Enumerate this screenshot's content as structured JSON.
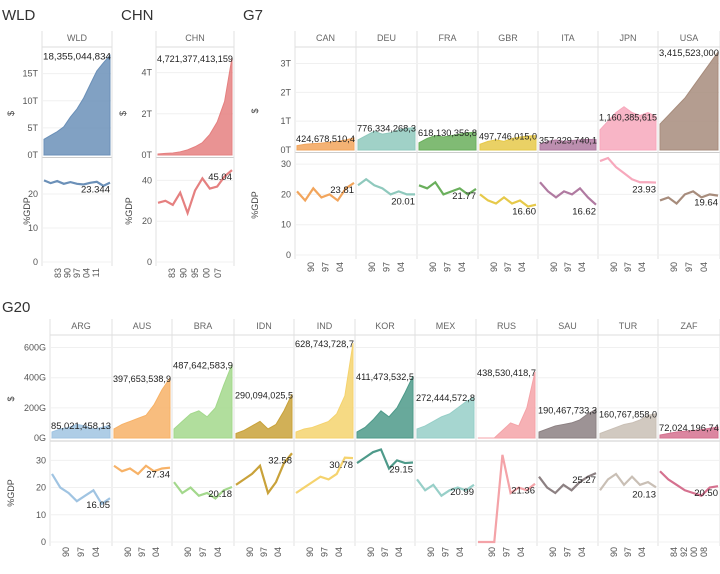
{
  "chart_data": [
    {
      "type": "area",
      "group": "WLD",
      "unit_label": "$",
      "share_label": "%GDP",
      "y_ticks_gdp": [
        "0T",
        "5T",
        "10T",
        "15T"
      ],
      "y_ticks_share": [
        "0",
        "10",
        "20"
      ],
      "series": [
        {
          "name": "WLD",
          "color": "#6b90b8",
          "gdp_label": "18,355,044,834",
          "share_label": "23.344",
          "years": [
            1983,
            1990,
            1997,
            2004,
            2011
          ],
          "year_ticks": [
            "83",
            "90",
            "97",
            "04",
            "11"
          ],
          "gdp": [
            2.9,
            3.6,
            4.3,
            5.2,
            7.0,
            8.5,
            10.5,
            13.0,
            15.5,
            17.0,
            18.36
          ],
          "share": [
            24.0,
            23.2,
            23.8,
            23.0,
            23.5,
            23.0,
            22.8,
            23.3,
            23.6,
            22.4,
            23.34
          ]
        }
      ]
    },
    {
      "type": "area",
      "group": "CHN",
      "unit_label": "$",
      "share_label": "%GDP",
      "y_ticks_gdp": [
        "0T",
        "2T",
        "4T"
      ],
      "y_ticks_share": [
        "0",
        "20",
        "40"
      ],
      "series": [
        {
          "name": "CHN",
          "color": "#e58080",
          "gdp_label": "4,721,377,413,159",
          "share_label": "45.04",
          "years": [
            1983,
            1990,
            1995,
            2000,
            2007
          ],
          "year_ticks": [
            "83",
            "90",
            "95",
            "00",
            "07"
          ],
          "gdp": [
            0.05,
            0.08,
            0.1,
            0.15,
            0.25,
            0.4,
            0.6,
            1.0,
            1.6,
            2.6,
            4.72
          ],
          "share": [
            29,
            30,
            28,
            34,
            24,
            35,
            41,
            36,
            37,
            42,
            45.04
          ]
        }
      ]
    },
    {
      "type": "area",
      "group": "G7",
      "unit_label": "$",
      "share_label": "%GDP",
      "y_ticks_gdp": [
        "0T",
        "1T",
        "2T",
        "3T"
      ],
      "y_ticks_share": [
        "0",
        "10",
        "20",
        "30"
      ],
      "year_ticks": [
        "90",
        "97",
        "04"
      ],
      "series": [
        {
          "name": "CAN",
          "color": "#f2a55c",
          "gdp_label": "424,678,510,4",
          "share_label": "23.81",
          "gdp": [
            0.15,
            0.2,
            0.22,
            0.24,
            0.27,
            0.3,
            0.35,
            0.42
          ],
          "share": [
            21,
            18,
            22,
            19,
            20,
            18,
            22,
            23.8
          ]
        },
        {
          "name": "DEU",
          "color": "#8fc9bd",
          "gdp_label": "776,334,268,3",
          "share_label": "20.01",
          "gdp": [
            0.35,
            0.5,
            0.65,
            0.55,
            0.6,
            0.7,
            0.75,
            0.78
          ],
          "share": [
            23,
            25,
            23,
            22,
            20,
            21,
            20,
            20.0
          ]
        },
        {
          "name": "FRA",
          "color": "#6aaf5c",
          "gdp_label": "618,130,356,8",
          "share_label": "21.77",
          "gdp": [
            0.25,
            0.4,
            0.5,
            0.45,
            0.5,
            0.55,
            0.6,
            0.62
          ],
          "share": [
            23,
            22,
            24,
            20,
            21,
            22,
            20,
            21.8
          ]
        },
        {
          "name": "GBR",
          "color": "#e6c94a",
          "gdp_label": "497,746,015,0",
          "share_label": "16.60",
          "gdp": [
            0.2,
            0.3,
            0.35,
            0.3,
            0.4,
            0.45,
            0.48,
            0.5
          ],
          "share": [
            20,
            18,
            17,
            19,
            17,
            18,
            16,
            16.6
          ]
        },
        {
          "name": "ITA",
          "color": "#b07aa1",
          "gdp_label": "357,329,740,1",
          "share_label": "16.62",
          "gdp": [
            0.2,
            0.3,
            0.35,
            0.3,
            0.33,
            0.35,
            0.37,
            0.36
          ],
          "share": [
            24,
            21,
            19,
            21,
            20,
            22,
            19,
            16.6
          ]
        },
        {
          "name": "JPN",
          "color": "#f7a8bc",
          "gdp_label": "1,160,385,615",
          "share_label": "23.93",
          "gdp": [
            0.7,
            1.0,
            1.3,
            1.5,
            1.3,
            1.2,
            1.3,
            1.16
          ],
          "share": [
            31,
            32,
            29,
            27,
            25,
            24,
            24,
            23.9
          ]
        },
        {
          "name": "USA",
          "color": "#a78c7c",
          "gdp_label": "3,415,523,000",
          "share_label": "19.64",
          "gdp": [
            0.9,
            1.2,
            1.5,
            1.8,
            2.2,
            2.6,
            3.0,
            3.42
          ],
          "share": [
            18,
            19,
            17,
            20,
            21,
            19,
            20,
            19.6
          ]
        }
      ]
    },
    {
      "type": "area",
      "group": "G20",
      "unit_label": "$",
      "share_label": "%GDP",
      "y_ticks_gdp": [
        "0G",
        "200G",
        "400G",
        "600G"
      ],
      "y_ticks_share": [
        "0",
        "10",
        "20",
        "30"
      ],
      "year_ticks": [
        "90",
        "97",
        "04"
      ],
      "year_ticks_alt": [
        "84",
        "92",
        "00",
        "08"
      ],
      "series": [
        {
          "name": "ARG",
          "color": "#a0c4e2",
          "gdp_label": "85,021,458,13",
          "share_label": "16.05",
          "gdp": [
            40,
            60,
            70,
            90,
            80,
            60,
            70,
            85
          ],
          "share": [
            25,
            20,
            18,
            15,
            17,
            19,
            14,
            16.1
          ]
        },
        {
          "name": "AUS",
          "color": "#f7b267",
          "gdp_label": "397,653,538,9",
          "share_label": "27.34",
          "gdp": [
            60,
            90,
            110,
            130,
            150,
            220,
            320,
            398
          ],
          "share": [
            28,
            26,
            27,
            25,
            28,
            26,
            27,
            27.3
          ]
        },
        {
          "name": "BRA",
          "color": "#a3d88c",
          "gdp_label": "487,642,583,9",
          "share_label": "20.18",
          "gdp": [
            60,
            110,
            160,
            180,
            140,
            200,
            350,
            488
          ],
          "share": [
            22,
            18,
            20,
            17,
            18,
            16,
            19,
            20.2
          ]
        },
        {
          "name": "IDN",
          "color": "#c9a23a",
          "gdp_label": "290,094,025,5",
          "share_label": "32.58",
          "gdp": [
            30,
            50,
            80,
            110,
            60,
            90,
            180,
            290
          ],
          "share": [
            21,
            23,
            25,
            28,
            18,
            22,
            29,
            32.6
          ]
        },
        {
          "name": "IND",
          "color": "#f5d36e",
          "gdp_label": "628,743,728,7",
          "share_label": "30.78",
          "gdp": [
            40,
            60,
            70,
            90,
            110,
            160,
            280,
            629
          ],
          "share": [
            18,
            20,
            22,
            24,
            23,
            25,
            31,
            30.8
          ]
        },
        {
          "name": "KOR",
          "color": "#4e9a8a",
          "gdp_label": "411,473,532,5",
          "share_label": "29.15",
          "gdp": [
            40,
            70,
            120,
            180,
            140,
            200,
            300,
            411
          ],
          "share": [
            29,
            31,
            33,
            34,
            27,
            30,
            29,
            29.2
          ]
        },
        {
          "name": "MEX",
          "color": "#97cfc8",
          "gdp_label": "272,444,572,8",
          "share_label": "20.99",
          "gdp": [
            60,
            80,
            110,
            140,
            160,
            200,
            240,
            272
          ],
          "share": [
            23,
            19,
            21,
            17,
            19,
            20,
            19,
            21.0
          ]
        },
        {
          "name": "RUS",
          "color": "#f4a3a8",
          "gdp_label": "438,530,418,7",
          "share_label": "21.36",
          "gdp": [
            0,
            0,
            0,
            50,
            100,
            80,
            200,
            439
          ],
          "share": [
            0,
            0,
            0,
            32,
            18,
            20,
            19,
            21.4
          ]
        },
        {
          "name": "SAU",
          "color": "#8c8082",
          "gdp_label": "190,467,733,3",
          "share_label": "25.27",
          "gdp": [
            40,
            60,
            80,
            90,
            100,
            120,
            160,
            190
          ],
          "share": [
            24,
            20,
            18,
            21,
            19,
            22,
            24,
            25.3
          ]
        },
        {
          "name": "TUR",
          "color": "#c9bfb5",
          "gdp_label": "160,767,858,0",
          "share_label": "20.13",
          "gdp": [
            30,
            50,
            70,
            90,
            100,
            120,
            150,
            161
          ],
          "share": [
            19,
            23,
            25,
            21,
            24,
            21,
            22,
            20.1
          ]
        },
        {
          "name": "ZAF",
          "color": "#d5718f",
          "gdp_label": "72,024,196,74",
          "share_label": "20.50",
          "gdp": [
            20,
            30,
            40,
            45,
            50,
            55,
            65,
            72
          ],
          "share": [
            26,
            23,
            21,
            19,
            18,
            17,
            20,
            20.5
          ]
        }
      ]
    }
  ]
}
